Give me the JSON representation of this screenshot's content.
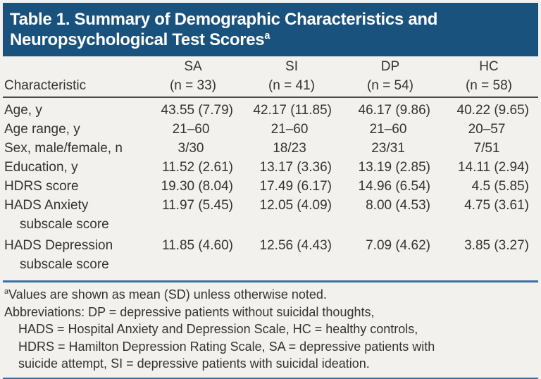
{
  "title": {
    "line1": "Table 1. Summary of Demographic Characteristics and",
    "line2": "Neuropsychological Test Scores",
    "superscript": "a"
  },
  "table": {
    "row_header": "Characteristic",
    "columns": [
      {
        "group": "SA",
        "n": "(n = 33)"
      },
      {
        "group": "SI",
        "n": "(n = 41)"
      },
      {
        "group": "DP",
        "n": "(n = 54)"
      },
      {
        "group": "HC",
        "n": "(n = 58)"
      }
    ],
    "rows": [
      {
        "label": "Age, y",
        "label2": "",
        "values": [
          "43.55 (7.79)",
          "42.17 (11.85)",
          "46.17 (9.86)",
          "40.22 (9.65)"
        ]
      },
      {
        "label": "Age range, y",
        "label2": "",
        "values": [
          "21–60",
          "21–60",
          "21–60",
          "20–57"
        ]
      },
      {
        "label": "Sex, male/female, n",
        "label2": "",
        "values": [
          "3/30",
          "18/23",
          "23/31",
          "7/51"
        ]
      },
      {
        "label": "Education, y",
        "label2": "",
        "values": [
          "11.52 (2.61)",
          "13.17 (3.36)",
          "13.19 (2.85)",
          "14.11 (2.94)"
        ]
      },
      {
        "label": "HDRS score",
        "label2": "",
        "values": [
          "19.30 (8.04)",
          "17.49 (6.17)",
          "14.96 (6.54)",
          "4.5 (5.85)"
        ]
      },
      {
        "label": "HADS Anxiety",
        "label2": "subscale score",
        "values": [
          "11.97 (5.45)",
          "12.05 (4.09)",
          "8.00 (4.53)",
          "4.75 (3.61)"
        ]
      },
      {
        "label": "HADS Depression",
        "label2": "subscale score",
        "values": [
          "11.85 (4.60)",
          "12.56 (4.43)",
          "7.09 (4.62)",
          "3.85 (3.27)"
        ]
      }
    ]
  },
  "footnotes": {
    "superscript": "a",
    "values_note": "Values are shown as mean (SD) unless otherwise noted.",
    "abbrev_lines": [
      {
        "text": "Abbreviations: DP = depressive patients without suicidal thoughts,",
        "indent": false
      },
      {
        "text": "HADS = Hospital Anxiety and Depression Scale, HC = healthy controls,",
        "indent": true
      },
      {
        "text": "HDRS = Hamilton Depression Rating Scale, SA = depressive patients with",
        "indent": true
      },
      {
        "text": "suicide attempt, SI = depressive patients with suicidal ideation.",
        "indent": true
      }
    ]
  },
  "colors": {
    "header_bar": "#1a527e",
    "rule_blue": "#3c6e9e",
    "rule_dark": "#4a4a47",
    "background": "#f2f1ed",
    "text": "#333333"
  }
}
